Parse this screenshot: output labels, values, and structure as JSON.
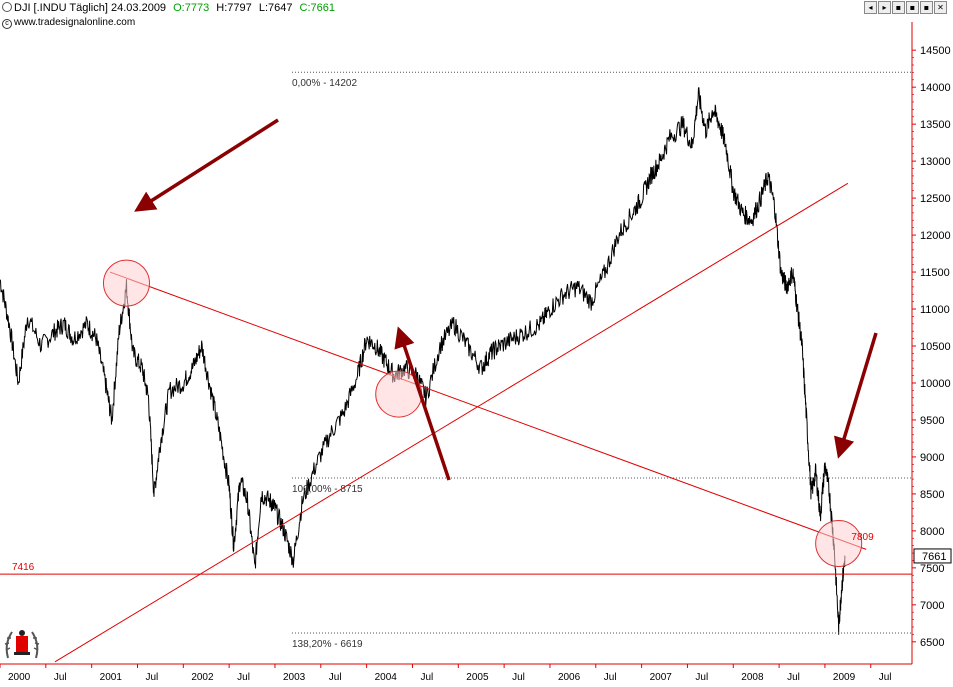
{
  "header": {
    "symbol": "DJI [.INDU  Täglich]",
    "date": "24.03.2009",
    "open_label": "O:7773",
    "high_label": "H:7797",
    "low_label": "L:7647",
    "close_label": "C:7661",
    "copyright": "www.tradesignalonline.com",
    "toolbar": [
      "◂",
      "▸",
      "▪",
      "▪",
      "▪",
      "✕"
    ]
  },
  "colors": {
    "price": "#000000",
    "trendline": "#e00000",
    "arrow": "#8b0000",
    "circle_fill": "#ffd0d0",
    "circle_stroke": "#e03030",
    "fib": "#555555",
    "axis": "#e00000"
  },
  "chart_data": {
    "type": "line",
    "title": "",
    "xlabel": "",
    "ylabel": "",
    "ylim": [
      6200,
      14800
    ],
    "x_tick_labels": [
      "2000",
      "Jul",
      "2001",
      "Jul",
      "2002",
      "Jul",
      "2003",
      "Jul",
      "2004",
      "Jul",
      "2005",
      "Jul",
      "2006",
      "Jul",
      "2007",
      "Jul",
      "2008",
      "Jul",
      "2009",
      "Jul"
    ],
    "y_ticks": [
      6500,
      7000,
      7500,
      8000,
      8500,
      9000,
      9500,
      10000,
      10500,
      11000,
      11500,
      12000,
      12500,
      13000,
      13500,
      14000,
      14500
    ],
    "last_price_label": "7661",
    "series": [
      {
        "x": [
          2000.0,
          2000.1,
          2000.2,
          2000.3,
          2000.45,
          2000.6,
          2000.7,
          2000.8,
          2000.95,
          2001.05,
          2001.15,
          2001.22,
          2001.3,
          2001.38,
          2001.45,
          2001.55,
          2001.62,
          2001.68,
          2001.75,
          2001.85,
          2002.0,
          2002.1,
          2002.2,
          2002.3,
          2002.4,
          2002.5,
          2002.55,
          2002.62,
          2002.7,
          2002.78,
          2002.85,
          2002.95,
          2003.0,
          2003.1,
          2003.2,
          2003.3,
          2003.45,
          2003.6,
          2003.75,
          2003.9,
          2004.0,
          2004.1,
          2004.2,
          2004.3,
          2004.42,
          2004.55,
          2004.65,
          2004.8,
          2004.95,
          2005.1,
          2005.25,
          2005.35,
          2005.45,
          2005.6,
          2005.75,
          2005.9,
          2006.0,
          2006.15,
          2006.3,
          2006.45,
          2006.6,
          2006.75,
          2006.9,
          2007.0,
          2007.1,
          2007.2,
          2007.3,
          2007.45,
          2007.55,
          2007.62,
          2007.7,
          2007.78,
          2007.85,
          2007.92,
          2008.0,
          2008.1,
          2008.2,
          2008.3,
          2008.38,
          2008.45,
          2008.52,
          2008.58,
          2008.65,
          2008.7,
          2008.75,
          2008.8,
          2008.85,
          2008.9,
          2008.95,
          2009.0,
          2009.05,
          2009.1,
          2009.15,
          2009.18,
          2009.22
        ],
        "values": [
          11400,
          10800,
          10000,
          10900,
          10500,
          10700,
          10800,
          10600,
          10800,
          10600,
          10000,
          9500,
          10700,
          11300,
          10400,
          10200,
          9800,
          8500,
          9200,
          9900,
          10000,
          10200,
          10500,
          9900,
          9300,
          8600,
          7800,
          8700,
          8400,
          7500,
          8500,
          8400,
          8300,
          8000,
          7600,
          8400,
          8900,
          9300,
          9600,
          10100,
          10600,
          10500,
          10300,
          10100,
          10200,
          10100,
          9800,
          10500,
          10800,
          10500,
          10200,
          10400,
          10500,
          10600,
          10700,
          10800,
          11000,
          11200,
          11300,
          11100,
          11500,
          12000,
          12300,
          12500,
          12800,
          13000,
          13300,
          13500,
          13200,
          13900,
          13400,
          13700,
          13500,
          13200,
          12600,
          12300,
          12200,
          12500,
          12800,
          12400,
          11500,
          11300,
          11500,
          11000,
          10500,
          9500,
          8500,
          8800,
          8200,
          8900,
          8500,
          7800,
          6700,
          7200,
          7661
        ]
      }
    ],
    "horizontal_lines": [
      {
        "value": 7416,
        "label": "7416"
      }
    ],
    "fib_levels": [
      {
        "value": 14202,
        "label": "0,00% - 14202"
      },
      {
        "value": 8715,
        "label": "100,00% - 8715"
      },
      {
        "value": 6619,
        "label": "138,20% - 6619"
      }
    ],
    "trendlines": [
      {
        "x": [
          2001.2,
          2009.45
        ],
        "values": [
          11500,
          7750
        ]
      },
      {
        "x": [
          2000.6,
          2009.25
        ],
        "values": [
          6230,
          12700
        ]
      }
    ],
    "annotations": [
      {
        "x": 2009.18,
        "value": 7850,
        "label": "7809"
      }
    ]
  }
}
